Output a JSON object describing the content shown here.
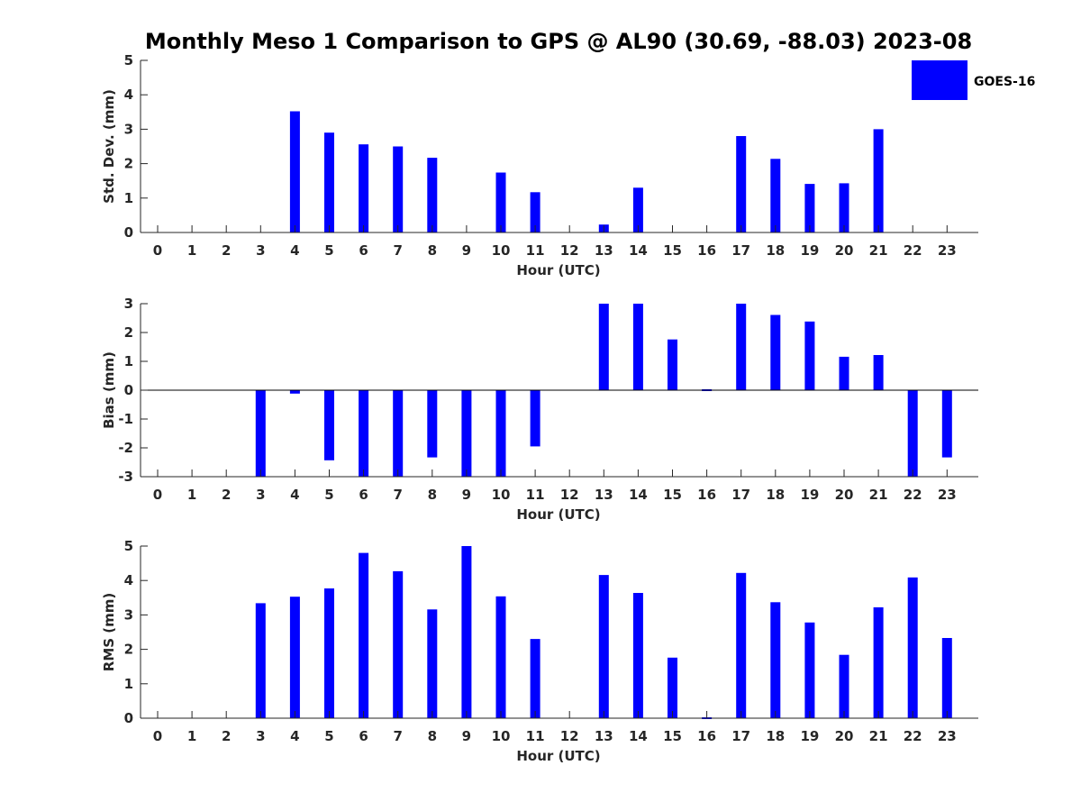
{
  "title": "Monthly Meso 1 Comparison to GPS @ AL90 (30.69, -88.03) 2023-08",
  "legend": {
    "label": "GOES-16",
    "color": "#0000ff"
  },
  "chart_data": [
    {
      "type": "bar",
      "ylabel": "Std. Dev. (mm)",
      "xlabel": "Hour (UTC)",
      "ylim": [
        0,
        5
      ],
      "yticks": [
        "0",
        "1",
        "2",
        "3",
        "4",
        "5"
      ],
      "categories": [
        "0",
        "1",
        "2",
        "3",
        "4",
        "5",
        "6",
        "7",
        "8",
        "9",
        "10",
        "11",
        "12",
        "13",
        "14",
        "15",
        "16",
        "17",
        "18",
        "19",
        "20",
        "21",
        "22",
        "23"
      ],
      "series": [
        {
          "name": "GOES-16",
          "values": [
            null,
            null,
            null,
            null,
            3.52,
            2.9,
            2.56,
            2.5,
            2.17,
            null,
            1.74,
            1.17,
            null,
            0.23,
            1.3,
            null,
            null,
            2.8,
            2.14,
            1.41,
            1.43,
            3.0,
            null,
            null
          ]
        }
      ]
    },
    {
      "type": "bar",
      "ylabel": "Bias (mm)",
      "xlabel": "Hour (UTC)",
      "ylim": [
        -3,
        3
      ],
      "yticks": [
        "-3",
        "-2",
        "-1",
        "0",
        "1",
        "2",
        "3"
      ],
      "categories": [
        "0",
        "1",
        "2",
        "3",
        "4",
        "5",
        "6",
        "7",
        "8",
        "9",
        "10",
        "11",
        "12",
        "13",
        "14",
        "15",
        "16",
        "17",
        "18",
        "19",
        "20",
        "21",
        "22",
        "23"
      ],
      "series": [
        {
          "name": "GOES-16",
          "values": [
            null,
            null,
            null,
            -3.0,
            -0.12,
            -2.43,
            -3.0,
            -3.0,
            -2.33,
            -3.0,
            -3.0,
            -1.95,
            null,
            3.0,
            3.0,
            1.76,
            0.0,
            3.0,
            2.61,
            2.38,
            1.16,
            1.22,
            -3.0,
            -2.33
          ]
        }
      ]
    },
    {
      "type": "bar",
      "ylabel": "RMS (mm)",
      "xlabel": "Hour (UTC)",
      "ylim": [
        0,
        5
      ],
      "yticks": [
        "0",
        "1",
        "2",
        "3",
        "4",
        "5"
      ],
      "categories": [
        "0",
        "1",
        "2",
        "3",
        "4",
        "5",
        "6",
        "7",
        "8",
        "9",
        "10",
        "11",
        "12",
        "13",
        "14",
        "15",
        "16",
        "17",
        "18",
        "19",
        "20",
        "21",
        "22",
        "23"
      ],
      "series": [
        {
          "name": "GOES-16",
          "values": [
            null,
            null,
            null,
            3.34,
            3.53,
            3.77,
            4.8,
            4.27,
            3.16,
            5.0,
            3.54,
            2.3,
            null,
            4.16,
            3.64,
            1.76,
            0.05,
            4.22,
            3.37,
            2.78,
            1.84,
            3.22,
            4.09,
            2.33
          ]
        }
      ]
    }
  ]
}
